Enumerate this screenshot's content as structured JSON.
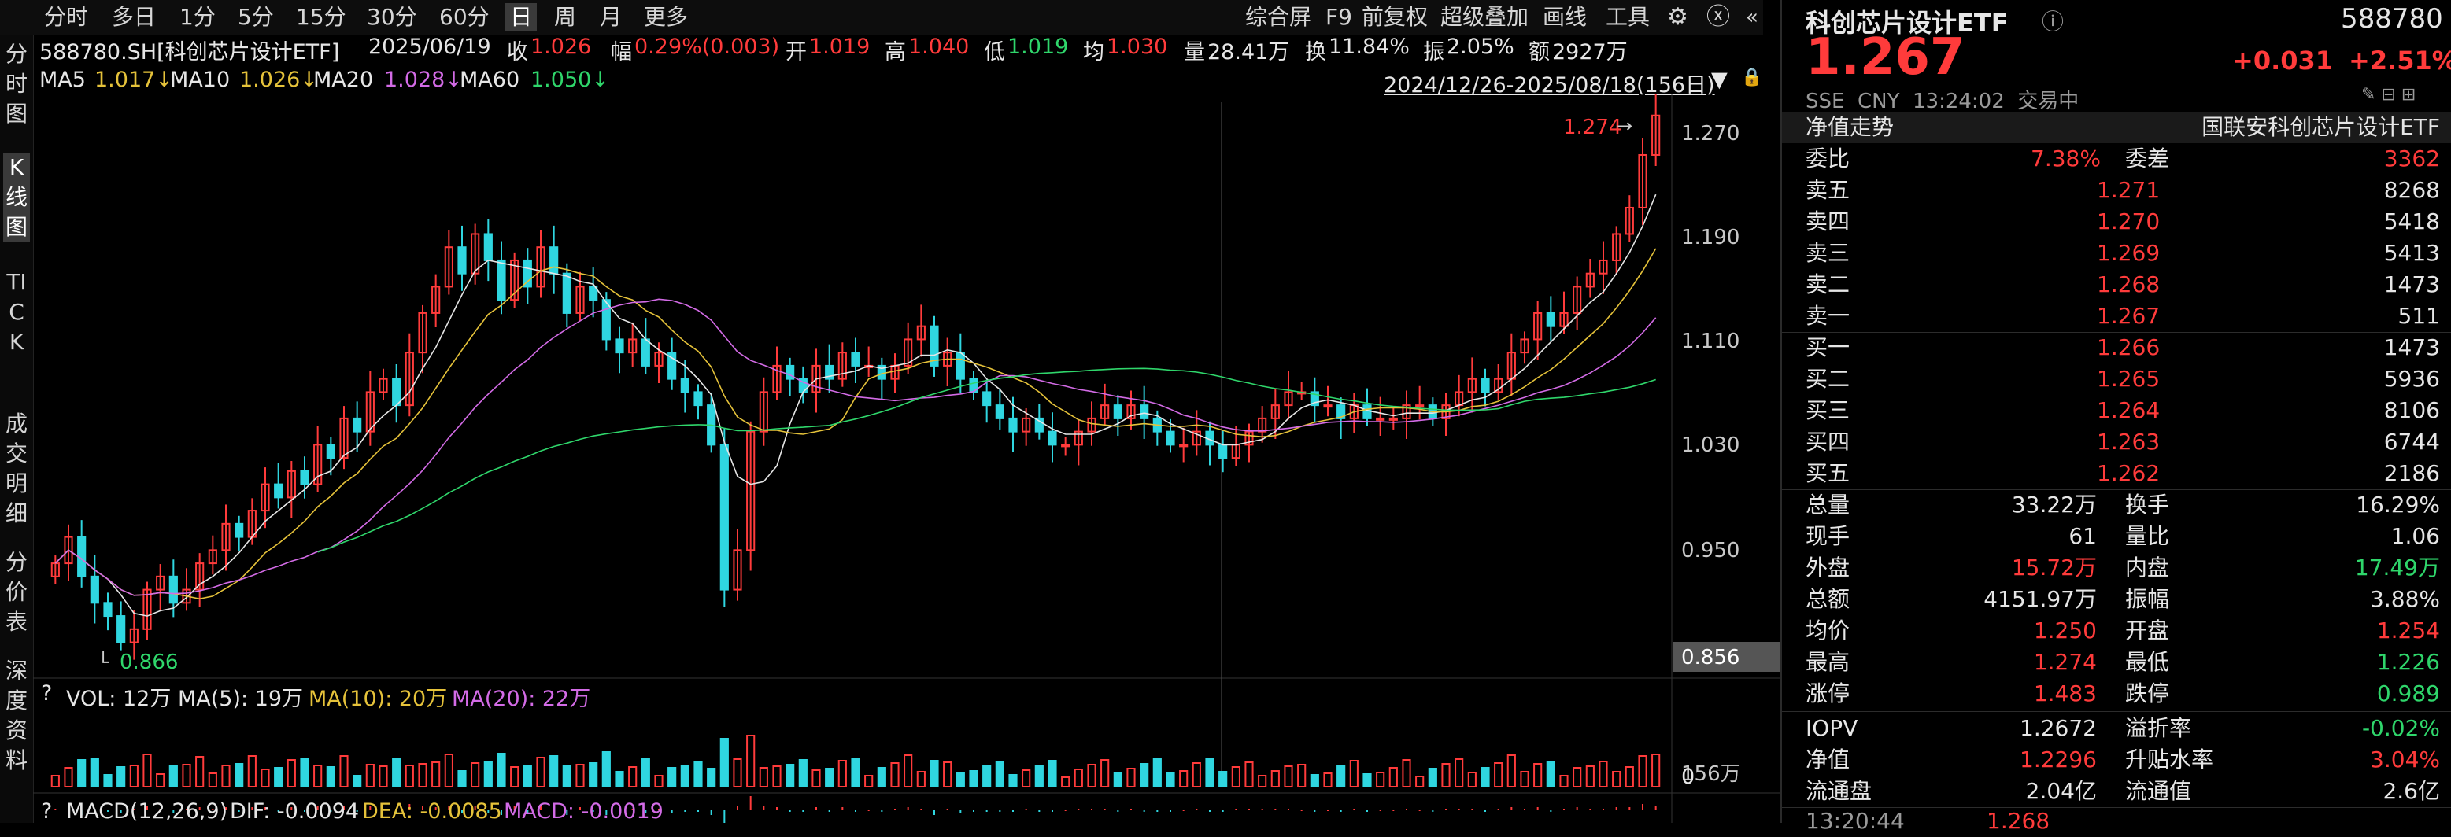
{
  "toolbar": {
    "periods": [
      "分时",
      "多日",
      "1分",
      "5分",
      "15分",
      "30分",
      "60分",
      "日",
      "周",
      "月",
      "更多"
    ],
    "active_period": "日",
    "tools": [
      "综合屏",
      "F9",
      "前复权",
      "超级叠加",
      "画线",
      "工具"
    ]
  },
  "left_nav": [
    "分时图",
    "K线图",
    "TICK",
    "成交明细",
    "分价表",
    "深度资料"
  ],
  "left_nav_active": "K线图",
  "info_bar": {
    "code_name": "588780.SH[科创芯片设计ETF]",
    "date": "2025/06/19",
    "close_label": "收",
    "close": "1.026",
    "change_label": "幅",
    "change": "0.29%(0.003)",
    "open_label": "开",
    "open": "1.019",
    "high_label": "高",
    "high": "1.040",
    "low_label": "低",
    "low": "1.019",
    "avg_label": "均",
    "avg": "1.030",
    "vol_label": "量",
    "vol": "28.41万",
    "turnover_label": "换",
    "turnover": "11.84%",
    "amp_label": "振",
    "amp": "2.05%",
    "amount_label": "额",
    "amount": "2927万"
  },
  "ma_bar": {
    "ma5_label": "MA5",
    "ma5": "1.017↓",
    "ma10_label": "MA10",
    "ma10": "1.026↓",
    "ma20_label": "MA20",
    "ma20": "1.028↓",
    "ma60_label": "MA60",
    "ma60": "1.050↓",
    "range": "2024/12/26-2025/08/18(156日)"
  },
  "price_axis": {
    "labels": [
      "1.270",
      "1.190",
      "1.110",
      "1.030",
      "0.950"
    ],
    "bottom_value": "0.856",
    "max_mark": "1.274",
    "min_mark": "0.866"
  },
  "vol_bar": {
    "question": "?",
    "vol_label": "VOL: 12万",
    "ma5": "MA(5): 19万",
    "ma10": "MA(10): 20万",
    "ma20": "MA(20): 22万",
    "axis_top": "156万",
    "axis_zero": "0"
  },
  "macd_bar": {
    "question": "?",
    "label": "MACD(12,26,9)",
    "dif": "DIF: -0.0094",
    "dea": "DEA: -0.0085",
    "macd": "MACD: -0.0019"
  },
  "colors": {
    "up": "#ff3b3b",
    "down": "#2fd6e0",
    "ma5": "#e6e6e6",
    "ma10": "#e5c23a",
    "ma20": "#d36be6",
    "ma60": "#2fd66b"
  },
  "chart_data": {
    "type": "candlestick",
    "title": "588780.SH[科创芯片设计ETF]",
    "xlabel": "",
    "ylabel": "",
    "ylim": [
      0.856,
      1.28
    ],
    "x_range": "2024/12/26-2025/08/18",
    "grid": "off",
    "closes": [
      0.93,
      0.95,
      0.92,
      0.9,
      0.89,
      0.87,
      0.88,
      0.91,
      0.92,
      0.9,
      0.91,
      0.93,
      0.94,
      0.96,
      0.95,
      0.97,
      0.99,
      0.98,
      1.0,
      0.99,
      1.02,
      1.01,
      1.04,
      1.03,
      1.06,
      1.07,
      1.05,
      1.09,
      1.12,
      1.14,
      1.17,
      1.15,
      1.18,
      1.16,
      1.13,
      1.16,
      1.14,
      1.17,
      1.15,
      1.12,
      1.14,
      1.13,
      1.1,
      1.09,
      1.1,
      1.08,
      1.09,
      1.07,
      1.06,
      1.05,
      1.02,
      0.91,
      0.94,
      1.03,
      1.06,
      1.08,
      1.07,
      1.06,
      1.08,
      1.07,
      1.09,
      1.08,
      1.08,
      1.07,
      1.08,
      1.1,
      1.11,
      1.08,
      1.09,
      1.07,
      1.06,
      1.05,
      1.04,
      1.03,
      1.04,
      1.03,
      1.02,
      1.02,
      1.03,
      1.04,
      1.05,
      1.04,
      1.05,
      1.04,
      1.03,
      1.02,
      1.02,
      1.03,
      1.02,
      1.01,
      1.02,
      1.03,
      1.04,
      1.05,
      1.06,
      1.06,
      1.05,
      1.05,
      1.04,
      1.05,
      1.04,
      1.04,
      1.04,
      1.05,
      1.05,
      1.04,
      1.05,
      1.06,
      1.07,
      1.06,
      1.07,
      1.09,
      1.1,
      1.12,
      1.11,
      1.12,
      1.14,
      1.15,
      1.16,
      1.18,
      1.2,
      1.24,
      1.27
    ]
  },
  "right_panel": {
    "title": "科创芯片设计ETF",
    "code": "588780",
    "price": "1.267",
    "change": "+0.031",
    "change_pct": "+2.51%",
    "meta": "SSE  CNY  13:24:02  交易中",
    "nav_trend": "净值走势",
    "fund_name": "国联安科创芯片设计ETF",
    "wb_label": "委比",
    "wb": "7.38%",
    "wc_label": "委差",
    "wc": "3362",
    "asks": [
      {
        "label": "卖五",
        "price": "1.271",
        "vol": "8268"
      },
      {
        "label": "卖四",
        "price": "1.270",
        "vol": "5418"
      },
      {
        "label": "卖三",
        "price": "1.269",
        "vol": "5413"
      },
      {
        "label": "卖二",
        "price": "1.268",
        "vol": "1473"
      },
      {
        "label": "卖一",
        "price": "1.267",
        "vol": "511"
      }
    ],
    "bids": [
      {
        "label": "买一",
        "price": "1.266",
        "vol": "1473"
      },
      {
        "label": "买二",
        "price": "1.265",
        "vol": "5936"
      },
      {
        "label": "买三",
        "price": "1.264",
        "vol": "8106"
      },
      {
        "label": "买四",
        "price": "1.263",
        "vol": "6744"
      },
      {
        "label": "买五",
        "price": "1.262",
        "vol": "2186"
      }
    ],
    "stats": [
      {
        "l1": "总量",
        "v1": "33.22万",
        "c1": "white",
        "l2": "换手",
        "v2": "16.29%",
        "c2": "white"
      },
      {
        "l1": "现手",
        "v1": "61",
        "c1": "white",
        "l2": "量比",
        "v2": "1.06",
        "c2": "white"
      },
      {
        "l1": "外盘",
        "v1": "15.72万",
        "c1": "red",
        "l2": "内盘",
        "v2": "17.49万",
        "c2": "green"
      },
      {
        "l1": "总额",
        "v1": "4151.97万",
        "c1": "white",
        "l2": "振幅",
        "v2": "3.88%",
        "c2": "white"
      },
      {
        "l1": "均价",
        "v1": "1.250",
        "c1": "red",
        "l2": "开盘",
        "v2": "1.254",
        "c2": "red"
      },
      {
        "l1": "最高",
        "v1": "1.274",
        "c1": "red",
        "l2": "最低",
        "v2": "1.226",
        "c2": "green"
      },
      {
        "l1": "涨停",
        "v1": "1.483",
        "c1": "red",
        "l2": "跌停",
        "v2": "0.989",
        "c2": "green"
      }
    ],
    "stats2": [
      {
        "l1": "IOPV",
        "v1": "1.2672",
        "c1": "white",
        "l2": "溢折率",
        "v2": "-0.02%",
        "c2": "green"
      },
      {
        "l1": "净值",
        "v1": "1.2296",
        "c1": "red",
        "l2": "升贴水率",
        "v2": "3.04%",
        "c2": "red"
      },
      {
        "l1": "流通盘",
        "v1": "2.04亿",
        "c1": "white",
        "l2": "流通值",
        "v2": "2.6亿",
        "c2": "white"
      }
    ],
    "tick_time": "13:20:44",
    "tick_price": "1.268"
  }
}
